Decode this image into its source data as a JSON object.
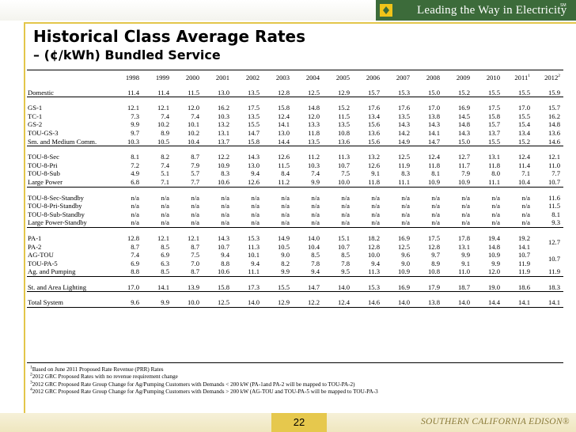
{
  "header": {
    "tagline": "Leading the Way in Electricity",
    "sm": "SM",
    "logo": "edison-logo-icon"
  },
  "slide": {
    "title": "Historical Class Average Rates",
    "subtitle": "– (¢/kWh) Bundled Service",
    "page_number": "22",
    "brand": "SOUTHERN CALIFORNIA EDISON®"
  },
  "colors": {
    "accent_gold": "#e3c64a",
    "header_green": "#3c6b3a"
  },
  "table": {
    "years": [
      "1998",
      "1999",
      "2000",
      "2001",
      "2002",
      "2003",
      "2004",
      "2005",
      "2006",
      "2007",
      "2008",
      "2009",
      "2010",
      "2011",
      "2012"
    ],
    "year_sup": {
      "2011": "1",
      "2012": "2"
    },
    "rows": [
      {
        "label": "Domestic",
        "values": [
          "11.4",
          "11.4",
          "11.5",
          "13.0",
          "13.5",
          "12.8",
          "12.5",
          "12.9",
          "15.7",
          "15.3",
          "15.0",
          "15.2",
          "15.5",
          "15.5",
          "15.9"
        ]
      },
      {
        "spacer": true
      },
      {
        "label": "GS-1",
        "values": [
          "12.1",
          "12.1",
          "12.0",
          "16.2",
          "17.5",
          "15.8",
          "14.8",
          "15.2",
          "17.6",
          "17.6",
          "17.0",
          "16.9",
          "17.5",
          "17.0",
          "15.7"
        ]
      },
      {
        "label": "TC-1",
        "values": [
          "7.3",
          "7.4",
          "7.4",
          "10.3",
          "13.5",
          "12.4",
          "12.0",
          "11.5",
          "13.4",
          "13.5",
          "13.8",
          "14.5",
          "15.8",
          "15.5",
          "16.2"
        ]
      },
      {
        "label": "GS-2",
        "values": [
          "9.9",
          "10.2",
          "10.1",
          "13.2",
          "15.5",
          "14.1",
          "13.3",
          "13.5",
          "15.6",
          "14.3",
          "14.3",
          "14.8",
          "15.7",
          "15.4",
          "14.8"
        ]
      },
      {
        "label": "TOU-GS-3",
        "values": [
          "9.7",
          "8.9",
          "10.2",
          "13.1",
          "14.7",
          "13.0",
          "11.8",
          "10.8",
          "13.6",
          "14.2",
          "14.1",
          "14.3",
          "13.7",
          "13.4",
          "13.6"
        ]
      },
      {
        "label": "Sm. and Medium Comm.",
        "values": [
          "10.3",
          "10.5",
          "10.4",
          "13.7",
          "15.8",
          "14.4",
          "13.5",
          "13.6",
          "15.6",
          "14.9",
          "14.7",
          "15.0",
          "15.5",
          "15.2",
          "14.6"
        ]
      },
      {
        "spacer": true
      },
      {
        "label": "TOU-8-Sec",
        "values": [
          "8.1",
          "8.2",
          "8.7",
          "12.2",
          "14.3",
          "12.6",
          "11.2",
          "11.3",
          "13.2",
          "12.5",
          "12.4",
          "12.7",
          "13.1",
          "12.4",
          "12.1"
        ]
      },
      {
        "label": "TOU-8-Pri",
        "values": [
          "7.2",
          "7.4",
          "7.9",
          "10.9",
          "13.0",
          "11.5",
          "10.3",
          "10.7",
          "12.6",
          "11.9",
          "11.8",
          "11.7",
          "11.8",
          "11.4",
          "11.0"
        ]
      },
      {
        "label": "TOU-8-Sub",
        "values": [
          "4.9",
          "5.1",
          "5.7",
          "8.3",
          "9.4",
          "8.4",
          "7.4",
          "7.5",
          "9.1",
          "8.3",
          "8.1",
          "7.9",
          "8.0",
          "7.1",
          "7.7"
        ]
      },
      {
        "label": "Large Power",
        "values": [
          "6.8",
          "7.1",
          "7.7",
          "10.6",
          "12.6",
          "11.2",
          "9.9",
          "10.0",
          "11.8",
          "11.1",
          "10.9",
          "10.9",
          "11.1",
          "10.4",
          "10.7"
        ]
      },
      {
        "spacer": true
      },
      {
        "label": "TOU-8-Sec-Standby",
        "values": [
          "n/a",
          "n/a",
          "n/a",
          "n/a",
          "n/a",
          "n/a",
          "n/a",
          "n/a",
          "n/a",
          "n/a",
          "n/a",
          "n/a",
          "n/a",
          "n/a",
          "11.6"
        ]
      },
      {
        "label": "TOU-8-Pri-Standby",
        "values": [
          "n/a",
          "n/a",
          "n/a",
          "n/a",
          "n/a",
          "n/a",
          "n/a",
          "n/a",
          "n/a",
          "n/a",
          "n/a",
          "n/a",
          "n/a",
          "n/a",
          "11.5"
        ]
      },
      {
        "label": "TOU-8-Sub-Standby",
        "values": [
          "n/a",
          "n/a",
          "n/a",
          "n/a",
          "n/a",
          "n/a",
          "n/a",
          "n/a",
          "n/a",
          "n/a",
          "n/a",
          "n/a",
          "n/a",
          "n/a",
          "8.1"
        ]
      },
      {
        "label": "Large Power-Standby",
        "values": [
          "n/a",
          "n/a",
          "n/a",
          "n/a",
          "n/a",
          "n/a",
          "n/a",
          "n/a",
          "n/a",
          "n/a",
          "n/a",
          "n/a",
          "n/a",
          "n/a",
          "9.3"
        ]
      },
      {
        "spacer": true
      },
      {
        "label": "PA-1",
        "values": [
          "12.8",
          "12.1",
          "12.1",
          "14.3",
          "15.3",
          "14.9",
          "14.0",
          "15.1",
          "18.2",
          "16.9",
          "17.5",
          "17.8",
          "19.4",
          "19.2"
        ],
        "merged_2012": "12.7",
        "merge_span": 2
      },
      {
        "label": "PA-2",
        "values": [
          "8.7",
          "8.5",
          "8.7",
          "10.7",
          "11.3",
          "10.5",
          "10.4",
          "10.7",
          "12.8",
          "12.5",
          "12.8",
          "13.1",
          "14.8",
          "14.1"
        ]
      },
      {
        "label": "AG-TOU",
        "values": [
          "7.4",
          "6.9",
          "7.5",
          "9.4",
          "10.1",
          "9.0",
          "8.5",
          "8.5",
          "10.0",
          "9.6",
          "9.7",
          "9.9",
          "10.9",
          "10.7"
        ],
        "merged_2012": "10.7",
        "merge_span": 2
      },
      {
        "label": "TOU-PA-5",
        "values": [
          "6.9",
          "6.3",
          "7.0",
          "8.8",
          "9.4",
          "8.2",
          "7.8",
          "7.8",
          "9.4",
          "9.0",
          "8.9",
          "9.1",
          "9.9",
          "11.9"
        ]
      },
      {
        "label": "Ag. and Pumping",
        "values": [
          "8.8",
          "8.5",
          "8.7",
          "10.6",
          "11.1",
          "9.9",
          "9.4",
          "9.5",
          "11.3",
          "10.9",
          "10.8",
          "11.0",
          "12.0",
          "11.9",
          "11.9"
        ]
      },
      {
        "spacer": true
      },
      {
        "label": "St. and Area Lighting",
        "values": [
          "17.0",
          "14.1",
          "13.9",
          "15.8",
          "17.3",
          "15.5",
          "14.7",
          "14.0",
          "15.3",
          "16.9",
          "17.9",
          "18.7",
          "19.0",
          "18.6",
          "18.3"
        ]
      },
      {
        "spacer": true
      },
      {
        "label": "Total System",
        "values": [
          "9.6",
          "9.9",
          "10.0",
          "12.5",
          "14.0",
          "12.9",
          "12.2",
          "12.4",
          "14.6",
          "14.0",
          "13.8",
          "14.0",
          "14.4",
          "14.1",
          "14.1"
        ],
        "last": true
      }
    ],
    "separator_after_labels": [
      "Domestic",
      "Sm. and Medium Comm.",
      "Large Power",
      "Large Power-Standby",
      "Ag. and Pumping",
      "St. and Area Lighting"
    ]
  },
  "footnotes": [
    {
      "num": "1",
      "text": "Based on June 2011 Proposed Rate Revenue (PRR) Rates"
    },
    {
      "num": "2",
      "text": "2012 GRC Proposed Rates with no revenue requirement change"
    },
    {
      "num": "3",
      "text": "2012 GRC Proposed Rate Group Change for Ag/Pumping Customers with Demands < 200 kW (PA-1and PA-2 will be mapped to TOU-PA-2)"
    },
    {
      "num": "4",
      "text": "2012 GRC Proposed Rate Group Change for Ag/Pumping Customers with Demands > 200 kW (AG-TOU and TOU-PA-5 will be mapped to TOU-PA-3"
    }
  ]
}
